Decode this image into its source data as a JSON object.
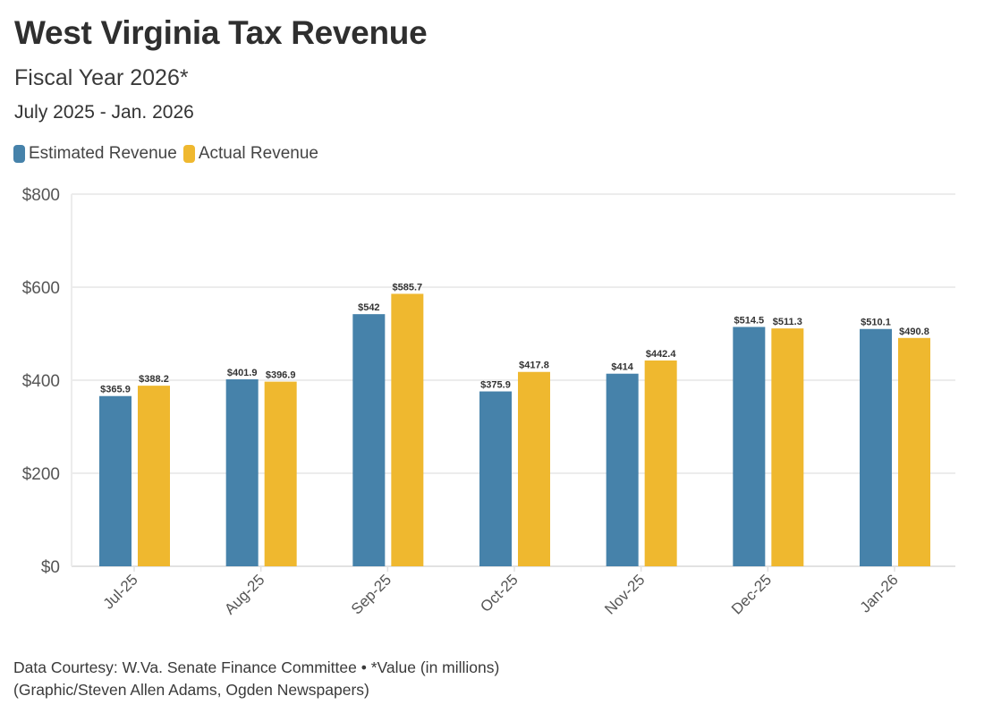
{
  "header": {
    "title": "West Virginia Tax Revenue",
    "subtitle": "Fiscal Year 2026*",
    "date_range": "July 2025 - Jan. 2026"
  },
  "legend": [
    {
      "label": "Estimated Revenue",
      "color": "#4682aa"
    },
    {
      "label": "Actual Revenue",
      "color": "#efb82f"
    }
  ],
  "footer": {
    "line1": "Data Courtesy: W.Va. Senate Finance Committee • *Value (in millions)",
    "line2": "(Graphic/Steven Allen Adams, Ogden Newspapers)"
  },
  "chart_data": {
    "type": "bar",
    "title": "West Virginia Tax Revenue",
    "subtitle": "Fiscal Year 2026* — July 2025 - Jan. 2026",
    "xlabel": "",
    "ylabel": "",
    "ylim": [
      0,
      800
    ],
    "yticks": [
      0,
      200,
      400,
      600,
      800
    ],
    "ytick_labels": [
      "$0",
      "$200",
      "$400",
      "$600",
      "$800"
    ],
    "grid": true,
    "legend_position": "top-left",
    "categories": [
      "Jul-25",
      "Aug-25",
      "Sep-25",
      "Oct-25",
      "Nov-25",
      "Dec-25",
      "Jan-26"
    ],
    "series": [
      {
        "name": "Estimated Revenue",
        "color": "#4682aa",
        "values": [
          365.9,
          401.9,
          542,
          375.9,
          414,
          514.5,
          510.1
        ],
        "labels": [
          "$365.9",
          "$401.9",
          "$542",
          "$375.9",
          "$414",
          "$514.5",
          "$510.1"
        ]
      },
      {
        "name": "Actual Revenue",
        "color": "#efb82f",
        "values": [
          388.2,
          396.9,
          585.7,
          417.8,
          442.4,
          511.3,
          490.8
        ],
        "labels": [
          "$388.2",
          "$396.9",
          "$585.7",
          "$417.8",
          "$442.4",
          "$511.3",
          "$490.8"
        ]
      }
    ],
    "units": "millions of dollars"
  }
}
